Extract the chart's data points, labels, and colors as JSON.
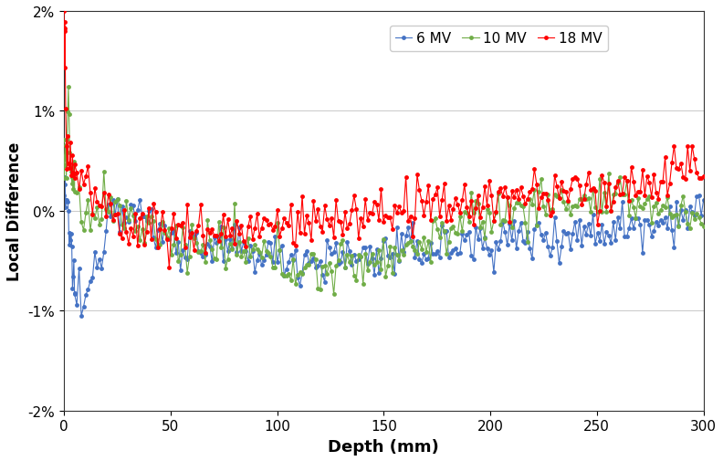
{
  "title": "",
  "xlabel": "Depth (mm)",
  "ylabel": "Local Difference",
  "xlim": [
    0,
    300
  ],
  "ylim": [
    -0.02,
    0.02
  ],
  "yticks": [
    -0.02,
    -0.01,
    0.0,
    0.01,
    0.02
  ],
  "ytick_labels": [
    "-2%",
    "-1%",
    "0%",
    "1%",
    "2%"
  ],
  "xticks": [
    0,
    50,
    100,
    150,
    200,
    250,
    300
  ],
  "xtick_labels": [
    "0",
    "50",
    "100",
    "150",
    "200",
    "250",
    "300"
  ],
  "colors": {
    "6MV": "#4472C4",
    "10MV": "#70AD47",
    "18MV": "#FF0000"
  },
  "legend_labels": [
    "6 MV",
    "10 MV",
    "18 MV"
  ],
  "marker_size": 3.5,
  "line_width": 0.8,
  "background_color": "#FFFFFF",
  "grid_color": "#C0C0C0"
}
